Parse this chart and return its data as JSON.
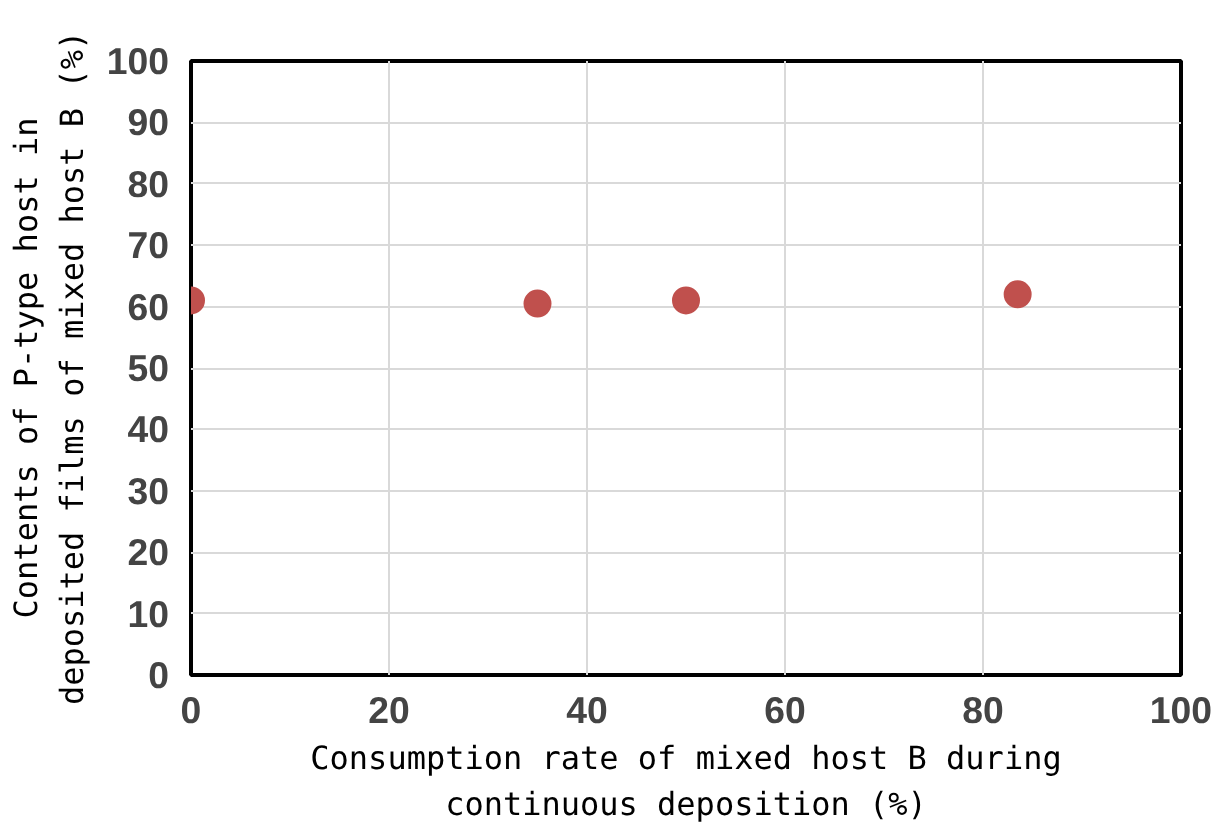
{
  "chart_data": {
    "type": "scatter",
    "xlabel": "Consumption rate of mixed host B during\ncontinuous deposition (%)",
    "ylabel": "Contents of P-type host in\ndeposited films of mixed host B (%)",
    "x": [
      0,
      35,
      50,
      83.5
    ],
    "series": [
      {
        "color": "#c0504d",
        "values": [
          61,
          60.5,
          61,
          62
        ]
      }
    ],
    "xlim": [
      0,
      100
    ],
    "ylim": [
      0,
      100
    ],
    "xticks": [
      0,
      20,
      40,
      60,
      80,
      100
    ],
    "yticks": [
      0,
      10,
      20,
      30,
      40,
      50,
      60,
      70,
      80,
      90,
      100
    ],
    "grid": true,
    "marker": "circle"
  }
}
